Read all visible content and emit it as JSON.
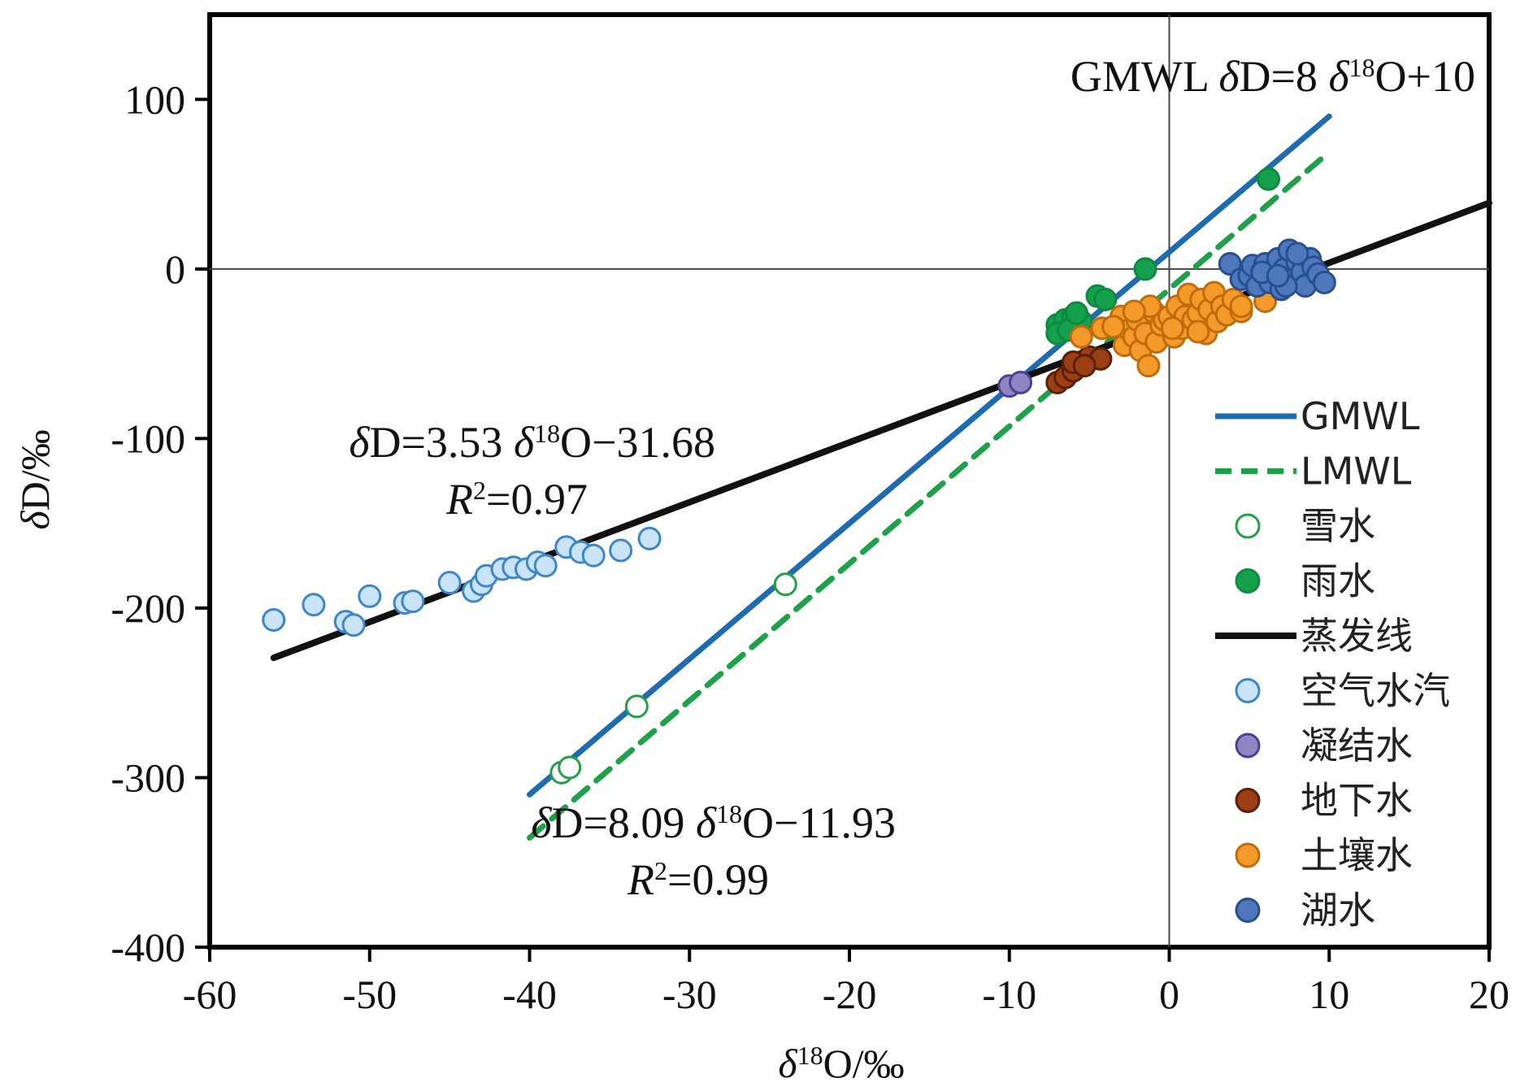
{
  "chart_data": {
    "type": "scatter",
    "xlabel": "δ18O/‰",
    "ylabel": "δD/‰",
    "xlim": [
      -60,
      20
    ],
    "ylim": [
      -400,
      150
    ],
    "xticks": [
      -60,
      -50,
      -40,
      -30,
      -20,
      -10,
      0,
      10,
      20
    ],
    "yticks": [
      -400,
      -300,
      -200,
      -100,
      0,
      100
    ],
    "xtick_labels": [
      "-60",
      "-50",
      "-40",
      "-30",
      "-20",
      "-10",
      "0",
      "10",
      "20"
    ],
    "ytick_labels": [
      "-400",
      "-300",
      "-200",
      "-100",
      "0",
      "100"
    ],
    "grid": false,
    "reference_lines": {
      "x": 0,
      "y": 0
    },
    "legend_position": "right",
    "annotations": {
      "gmwl_eq": "GMWL δD=8 δ18O+10",
      "evap_eq": "δD=3.53 δ18O−31.68",
      "evap_r2": "R2=0.97",
      "lmwl_eq": "δD=8.09 δ18O−11.93",
      "lmwl_r2": "R2=0.99"
    },
    "lines": [
      {
        "name": "GMWL",
        "color": "#1f6bb0",
        "style": "solid",
        "x": [
          -40,
          10
        ],
        "y": [
          -310,
          90
        ]
      },
      {
        "name": "LMWL",
        "color": "#1fa149",
        "style": "dashed",
        "x": [
          -40,
          10
        ],
        "y": [
          -335.5,
          68.97
        ]
      },
      {
        "name": "蒸发线",
        "color": "#111111",
        "style": "solid",
        "x": [
          -56,
          20
        ],
        "y": [
          -229.36,
          38.92
        ]
      }
    ],
    "series": [
      {
        "name": "雪水",
        "fill": "#ffffff",
        "stroke": "#22a045",
        "points": [
          [
            -38,
            -297
          ],
          [
            -37.5,
            -294
          ],
          [
            -33.3,
            -258
          ],
          [
            -24,
            -186
          ]
        ]
      },
      {
        "name": "雨水",
        "fill": "#14a04c",
        "stroke": "#0e8a3e",
        "points": [
          [
            6.2,
            53
          ],
          [
            -1.5,
            0
          ],
          [
            -4.5,
            -16
          ],
          [
            -4,
            -18
          ],
          [
            -7,
            -33
          ],
          [
            -6.5,
            -30
          ],
          [
            -6,
            -28
          ],
          [
            -5.5,
            -31
          ],
          [
            -7,
            -38
          ],
          [
            -6.3,
            -36
          ],
          [
            -5.8,
            -26
          ]
        ]
      },
      {
        "name": "空气水汽",
        "fill": "#c8e4f6",
        "stroke": "#3f86c9",
        "points": [
          [
            -56,
            -207
          ],
          [
            -53.5,
            -198
          ],
          [
            -51.5,
            -208
          ],
          [
            -51,
            -210
          ],
          [
            -50,
            -193
          ],
          [
            -47.8,
            -197
          ],
          [
            -47.3,
            -196
          ],
          [
            -45,
            -185
          ],
          [
            -43.5,
            -190
          ],
          [
            -43,
            -186
          ],
          [
            -42.7,
            -181
          ],
          [
            -41.7,
            -177
          ],
          [
            -41,
            -176
          ],
          [
            -40.2,
            -177
          ],
          [
            -39.5,
            -173
          ],
          [
            -39,
            -175
          ],
          [
            -37.7,
            -164
          ],
          [
            -36.8,
            -167
          ],
          [
            -36,
            -169
          ],
          [
            -34.3,
            -166
          ],
          [
            -32.5,
            -159
          ]
        ]
      },
      {
        "name": "凝结水",
        "fill": "#8d86c0",
        "stroke": "#4b3f96",
        "points": [
          [
            -10,
            -69
          ],
          [
            -9.3,
            -67
          ]
        ]
      },
      {
        "name": "地下水",
        "fill": "#9c3e14",
        "stroke": "#5a2006",
        "points": [
          [
            -7,
            -67
          ],
          [
            -6.5,
            -64
          ],
          [
            -6,
            -60
          ],
          [
            -5.5,
            -55
          ],
          [
            -5,
            -52
          ],
          [
            -4.3,
            -53
          ],
          [
            -6,
            -55
          ],
          [
            -5.3,
            -57
          ]
        ]
      },
      {
        "name": "土壤水",
        "fill": "#f39a2a",
        "stroke": "#c06c0c",
        "points": [
          [
            -5.5,
            -40
          ],
          [
            -4.2,
            -35
          ],
          [
            -3,
            -28
          ],
          [
            -2.8,
            -45
          ],
          [
            -2.5,
            -36
          ],
          [
            -2.2,
            -40
          ],
          [
            -2,
            -30
          ],
          [
            -1.8,
            -48
          ],
          [
            -1.5,
            -38
          ],
          [
            -1.3,
            -57
          ],
          [
            -1,
            -25
          ],
          [
            -0.8,
            -43
          ],
          [
            -0.5,
            -33
          ],
          [
            -0.3,
            -30
          ],
          [
            0,
            -28
          ],
          [
            0.3,
            -40
          ],
          [
            0.5,
            -22
          ],
          [
            0.8,
            -35
          ],
          [
            1,
            -28
          ],
          [
            1.2,
            -15
          ],
          [
            1.5,
            -30
          ],
          [
            1.8,
            -26
          ],
          [
            2,
            -18
          ],
          [
            2.3,
            -38
          ],
          [
            2.5,
            -24
          ],
          [
            2.8,
            -14
          ],
          [
            3,
            -31
          ],
          [
            3.3,
            -22
          ],
          [
            3.6,
            -27
          ],
          [
            4,
            -18
          ],
          [
            4.5,
            -25
          ],
          [
            -3.5,
            -34
          ],
          [
            -1.2,
            -22
          ],
          [
            0.2,
            -35
          ],
          [
            1.8,
            -37
          ],
          [
            -2.2,
            -25
          ],
          [
            4.5,
            -22
          ],
          [
            6,
            -19
          ]
        ]
      },
      {
        "name": "湖水",
        "fill": "#4e78bb",
        "stroke": "#284f8e",
        "points": [
          [
            3.8,
            3
          ],
          [
            4.5,
            -6
          ],
          [
            5,
            -4
          ],
          [
            5.2,
            2
          ],
          [
            5.5,
            -10
          ],
          [
            6,
            3
          ],
          [
            6.3,
            -8
          ],
          [
            6.5,
            -2
          ],
          [
            6.8,
            6
          ],
          [
            7,
            -12
          ],
          [
            7.2,
            0
          ],
          [
            7.5,
            11
          ],
          [
            7.8,
            -6
          ],
          [
            8,
            4
          ],
          [
            8.3,
            -2
          ],
          [
            8.5,
            -10
          ],
          [
            8.8,
            6
          ],
          [
            9,
            1
          ],
          [
            9.3,
            -3
          ],
          [
            9.7,
            -8
          ],
          [
            5.8,
            -2
          ],
          [
            7.3,
            -10
          ],
          [
            6.8,
            -4
          ],
          [
            8,
            9
          ]
        ]
      }
    ]
  }
}
